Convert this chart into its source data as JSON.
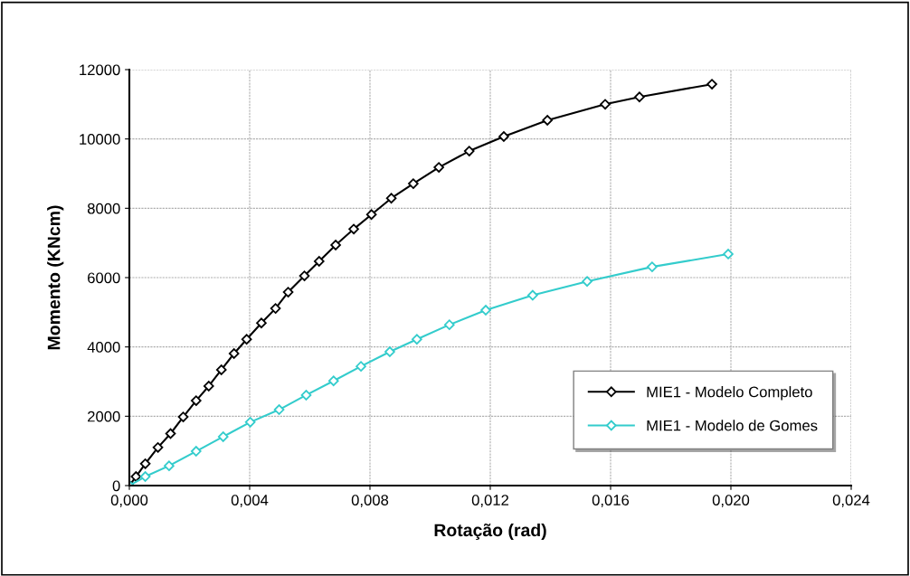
{
  "chart_data": {
    "type": "line",
    "xlabel": "Rotação (rad)",
    "ylabel": "Momento (KNcm)",
    "xlim": [
      0,
      0.024
    ],
    "xticks": [
      {
        "value": 0,
        "label": "0,000"
      },
      {
        "value": 0.004,
        "label": "0,004"
      },
      {
        "value": 0.008,
        "label": "0,008"
      },
      {
        "value": 0.012,
        "label": "0,012"
      },
      {
        "value": 0.016,
        "label": "0,016"
      },
      {
        "value": 0.02,
        "label": "0,020"
      },
      {
        "value": 0.024,
        "label": "0,024"
      }
    ],
    "ylim": [
      0,
      12000
    ],
    "yticks": [
      0,
      2000,
      4000,
      6000,
      8000,
      10000,
      12000
    ],
    "grid": true,
    "legend": "bottom right",
    "marker": "diamond",
    "line_style": "solid",
    "series": [
      {
        "name": "MIE1 - Modelo Completo",
        "color": "#000000",
        "x": [
          0,
          0.00022,
          0.00053,
          0.00095,
          0.00137,
          0.00179,
          0.00222,
          0.00264,
          0.00306,
          0.00348,
          0.0039,
          0.00439,
          0.00486,
          0.00528,
          0.00582,
          0.00631,
          0.00686,
          0.00746,
          0.00805,
          0.00871,
          0.00944,
          0.01029,
          0.0113,
          0.01245,
          0.0139,
          0.01582,
          0.01696,
          0.01937
        ],
        "values": [
          0,
          260,
          630,
          1100,
          1500,
          1980,
          2450,
          2870,
          3340,
          3810,
          4220,
          4690,
          5110,
          5580,
          6050,
          6470,
          6940,
          7400,
          7820,
          8290,
          8710,
          9180,
          9650,
          10070,
          10540,
          11000,
          11210,
          11580
        ]
      },
      {
        "name": "MIE1 - Modelo de Gomes",
        "color": "#33cccc",
        "x": [
          0,
          0.00053,
          0.00132,
          0.00222,
          0.00312,
          0.00402,
          0.00498,
          0.00588,
          0.00679,
          0.0077,
          0.00866,
          0.00956,
          0.01064,
          0.01185,
          0.01341,
          0.01522,
          0.01738,
          0.01991
        ],
        "values": [
          0,
          260,
          570,
          990,
          1410,
          1830,
          2190,
          2610,
          3020,
          3440,
          3860,
          4220,
          4640,
          5060,
          5490,
          5890,
          6310,
          6680
        ]
      }
    ]
  }
}
